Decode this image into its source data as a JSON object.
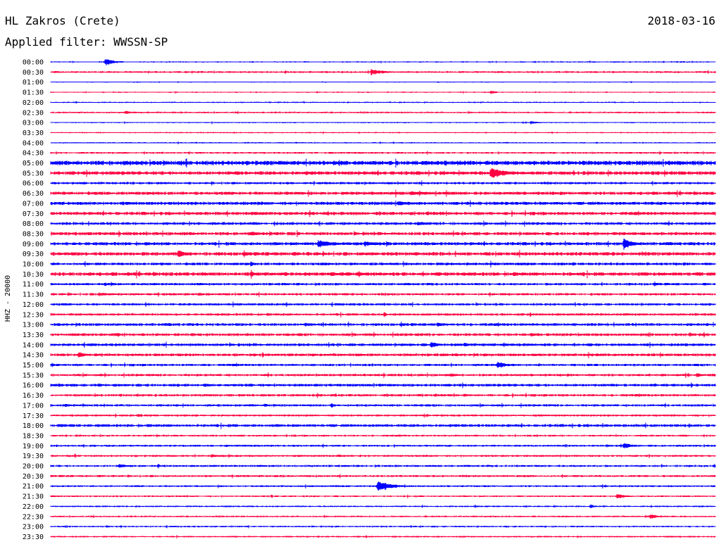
{
  "header": {
    "station": "HL Zakros (Crete)",
    "date": "2018-03-16",
    "filter_label": "Applied filter:",
    "filter_name": "WWSSN-SP"
  },
  "chart_data": {
    "type": "line",
    "ylabel": "HHZ - 20000",
    "row_labels": [
      "00:00",
      "00:30",
      "01:00",
      "01:30",
      "02:00",
      "02:30",
      "03:00",
      "03:30",
      "04:00",
      "04:30",
      "05:00",
      "05:30",
      "06:00",
      "06:30",
      "07:00",
      "07:30",
      "08:00",
      "08:30",
      "09:00",
      "09:30",
      "10:00",
      "10:30",
      "11:00",
      "11:30",
      "12:00",
      "12:30",
      "13:00",
      "13:30",
      "14:00",
      "14:30",
      "15:00",
      "15:30",
      "16:00",
      "16:30",
      "17:00",
      "17:30",
      "18:00",
      "18:30",
      "19:00",
      "19:30",
      "20:00",
      "20:30",
      "21:00",
      "21:30",
      "22:00",
      "22:30",
      "23:00",
      "23:30"
    ],
    "colors": [
      "#0000ff",
      "#ff0040"
    ],
    "noise": [
      0.6,
      0.9,
      0.4,
      0.6,
      0.6,
      0.8,
      0.6,
      0.6,
      0.6,
      0.9,
      2.2,
      1.8,
      1.2,
      1.6,
      1.6,
      1.6,
      1.4,
      1.6,
      1.6,
      1.8,
      1.4,
      1.8,
      1.2,
      1.2,
      1.2,
      1.2,
      1.4,
      1.4,
      1.4,
      1.4,
      1.2,
      1.2,
      1.4,
      1.2,
      1.2,
      1.0,
      1.4,
      0.9,
      1.0,
      1.0,
      1.0,
      1.0,
      0.9,
      0.8,
      0.8,
      0.8,
      0.8,
      0.8
    ],
    "events": [
      [
        [
          0.08,
          6,
          40
        ]
      ],
      [
        [
          0.48,
          5,
          55
        ],
        [
          0.21,
          2,
          20
        ]
      ],
      [],
      [
        [
          0.66,
          3,
          30
        ]
      ],
      [
        [
          0.34,
          2,
          20
        ]
      ],
      [
        [
          0.11,
          3,
          40
        ]
      ],
      [
        [
          0.72,
          3,
          30
        ]
      ],
      [],
      [
        [
          0.82,
          4,
          6
        ]
      ],
      [
        [
          0.24,
          4,
          6
        ],
        [
          0.8,
          2,
          10
        ]
      ],
      [
        [
          0.13,
          7,
          6
        ],
        [
          0.56,
          3,
          80
        ],
        [
          0.58,
          9,
          6
        ],
        [
          0.78,
          4,
          20
        ]
      ],
      [
        [
          0.66,
          9,
          60
        ],
        [
          0.28,
          3,
          20
        ],
        [
          0.29,
          2,
          20
        ]
      ],
      [
        [
          0.2,
          2,
          20
        ],
        [
          0.23,
          2,
          20
        ]
      ],
      [
        [
          0.54,
          3,
          120
        ],
        [
          0.81,
          4,
          6
        ]
      ],
      [
        [
          0.52,
          4,
          60
        ],
        [
          0.7,
          4,
          10
        ]
      ],
      [
        [
          0.3,
          3,
          50
        ],
        [
          0.36,
          6,
          6
        ]
      ],
      [
        [
          0.55,
          4,
          40
        ],
        [
          0.22,
          5,
          6
        ],
        [
          0.29,
          5,
          6
        ]
      ],
      [
        [
          0.3,
          3,
          80
        ]
      ],
      [
        [
          0.4,
          6,
          70
        ],
        [
          0.86,
          9,
          40
        ],
        [
          0.47,
          4,
          80
        ]
      ],
      [
        [
          0.19,
          8,
          30
        ],
        [
          0.41,
          4,
          6
        ],
        [
          0.48,
          3,
          40
        ],
        [
          0.63,
          2,
          20
        ]
      ],
      [
        [
          0.44,
          6,
          6
        ],
        [
          0.3,
          13,
          6
        ]
      ],
      [
        [
          0.3,
          14,
          8
        ],
        [
          0.35,
          6,
          6
        ],
        [
          0.42,
          5,
          30
        ],
        [
          0.46,
          4,
          30
        ],
        [
          0.6,
          3,
          20
        ]
      ],
      [
        [
          0.08,
          3,
          40
        ]
      ],
      [
        [
          0.07,
          3,
          60
        ],
        [
          0.22,
          3,
          30
        ]
      ],
      [
        [
          0.5,
          6,
          6
        ],
        [
          0.31,
          2,
          40
        ]
      ],
      [
        [
          0.5,
          7,
          10
        ]
      ],
      [
        [
          0.38,
          3,
          60
        ],
        [
          0.58,
          4,
          40
        ],
        [
          0.89,
          5,
          6
        ]
      ],
      [
        [
          0.1,
          6,
          10
        ],
        [
          0.72,
          3,
          30
        ],
        [
          0.82,
          3,
          20
        ]
      ],
      [
        [
          0.57,
          5,
          40
        ],
        [
          0.62,
          4,
          30
        ]
      ],
      [
        [
          0.04,
          6,
          30
        ],
        [
          0.65,
          4,
          10
        ],
        [
          0.82,
          3,
          40
        ]
      ],
      [
        [
          0.0,
          4,
          20
        ],
        [
          0.67,
          6,
          40
        ],
        [
          0.23,
          3,
          6
        ],
        [
          0.43,
          3,
          6
        ]
      ],
      [
        [
          0.6,
          3,
          40
        ],
        [
          0.97,
          4,
          30
        ]
      ],
      [
        [
          0.01,
          4,
          20
        ],
        [
          0.07,
          3,
          30
        ],
        [
          0.23,
          3,
          40
        ],
        [
          0.3,
          5,
          10
        ]
      ],
      [
        [
          0.62,
          3,
          30
        ]
      ],
      [
        [
          0.02,
          3,
          30
        ],
        [
          0.32,
          4,
          20
        ],
        [
          0.42,
          5,
          20
        ]
      ],
      [
        [
          0.13,
          6,
          10
        ]
      ],
      [
        [
          0.01,
          3,
          40
        ],
        [
          0.04,
          5,
          6
        ]
      ],
      [
        [
          0.32,
          2,
          20
        ]
      ],
      [
        [
          0.86,
          5,
          40
        ],
        [
          0.87,
          7,
          6
        ]
      ],
      [
        [
          0.24,
          3,
          40
        ],
        [
          0.43,
          3,
          30
        ]
      ],
      [
        [
          0.1,
          4,
          40
        ],
        [
          0.16,
          6,
          10
        ]
      ],
      [
        [
          0.71,
          5,
          6
        ],
        [
          0.7,
          2,
          30
        ]
      ],
      [
        [
          0.49,
          9,
          60
        ]
      ],
      [
        [
          0.33,
          5,
          10
        ],
        [
          0.85,
          4,
          40
        ]
      ],
      [
        [
          0.81,
          4,
          20
        ],
        [
          0.83,
          3,
          10
        ]
      ],
      [
        [
          0.9,
          4,
          40
        ]
      ],
      [],
      [
        [
          0.4,
          3,
          10
        ]
      ]
    ]
  }
}
